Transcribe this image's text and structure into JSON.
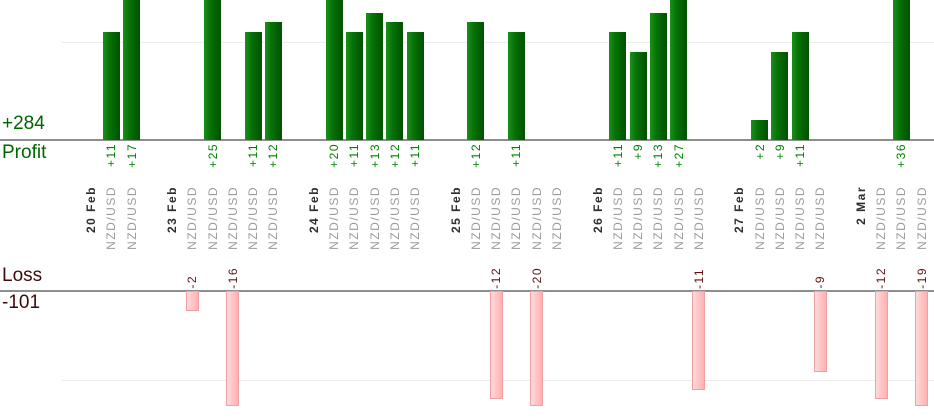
{
  "summary": {
    "profit_total": "+284",
    "profit_label": "Profit",
    "loss_label": "Loss",
    "loss_total": "-101"
  },
  "colors": {
    "profit_bar_gradient": [
      "#1a911a",
      "#015101"
    ],
    "profit_value_text": "#008000",
    "profit_summary_text": "#006600",
    "loss_bar_fill_gradient": [
      "#ffdada",
      "#ffb0b0"
    ],
    "loss_bar_border": "#f0a0a0",
    "loss_value_text": "#5c1212",
    "loss_summary_text": "#400a0a",
    "date_text": "#2e2e2e",
    "instrument_text": "#9b9b9b",
    "axis_line": "#8e8e8e",
    "gridline": "#ededed"
  },
  "chart_data": {
    "type": "bar",
    "orientation": "vertical-columns",
    "instrument_label": "NZD/USD",
    "groups": [
      {
        "date": "20 Feb",
        "trades": [
          11,
          17
        ]
      },
      {
        "date": "23 Feb",
        "trades": [
          -2,
          25,
          -16,
          11,
          12
        ]
      },
      {
        "date": "24 Feb",
        "trades": [
          20,
          11,
          13,
          12,
          11
        ]
      },
      {
        "date": "25 Feb",
        "trades": [
          12,
          -12,
          11,
          -20,
          0
        ]
      },
      {
        "date": "26 Feb",
        "trades": [
          11,
          9,
          13,
          27,
          -11
        ]
      },
      {
        "date": "27 Feb",
        "trades": [
          2,
          9,
          11,
          -9
        ]
      },
      {
        "date": "2 Mar",
        "trades": [
          -12,
          36,
          -19
        ]
      }
    ],
    "profit_total": 284,
    "loss_total": -101,
    "profit_axis": {
      "baseline_value": 0,
      "gridline_value": 10,
      "visible_max": 14,
      "note": "bars above visible_max are clipped at top edge"
    },
    "loss_axis": {
      "baseline_value": 0,
      "gridline_value": -10,
      "visible_min": -13,
      "note": "bars below visible_min are clipped at bottom of loss area"
    },
    "legend": "none",
    "grid": "horizontal gridlines at +10 and -10 only"
  }
}
